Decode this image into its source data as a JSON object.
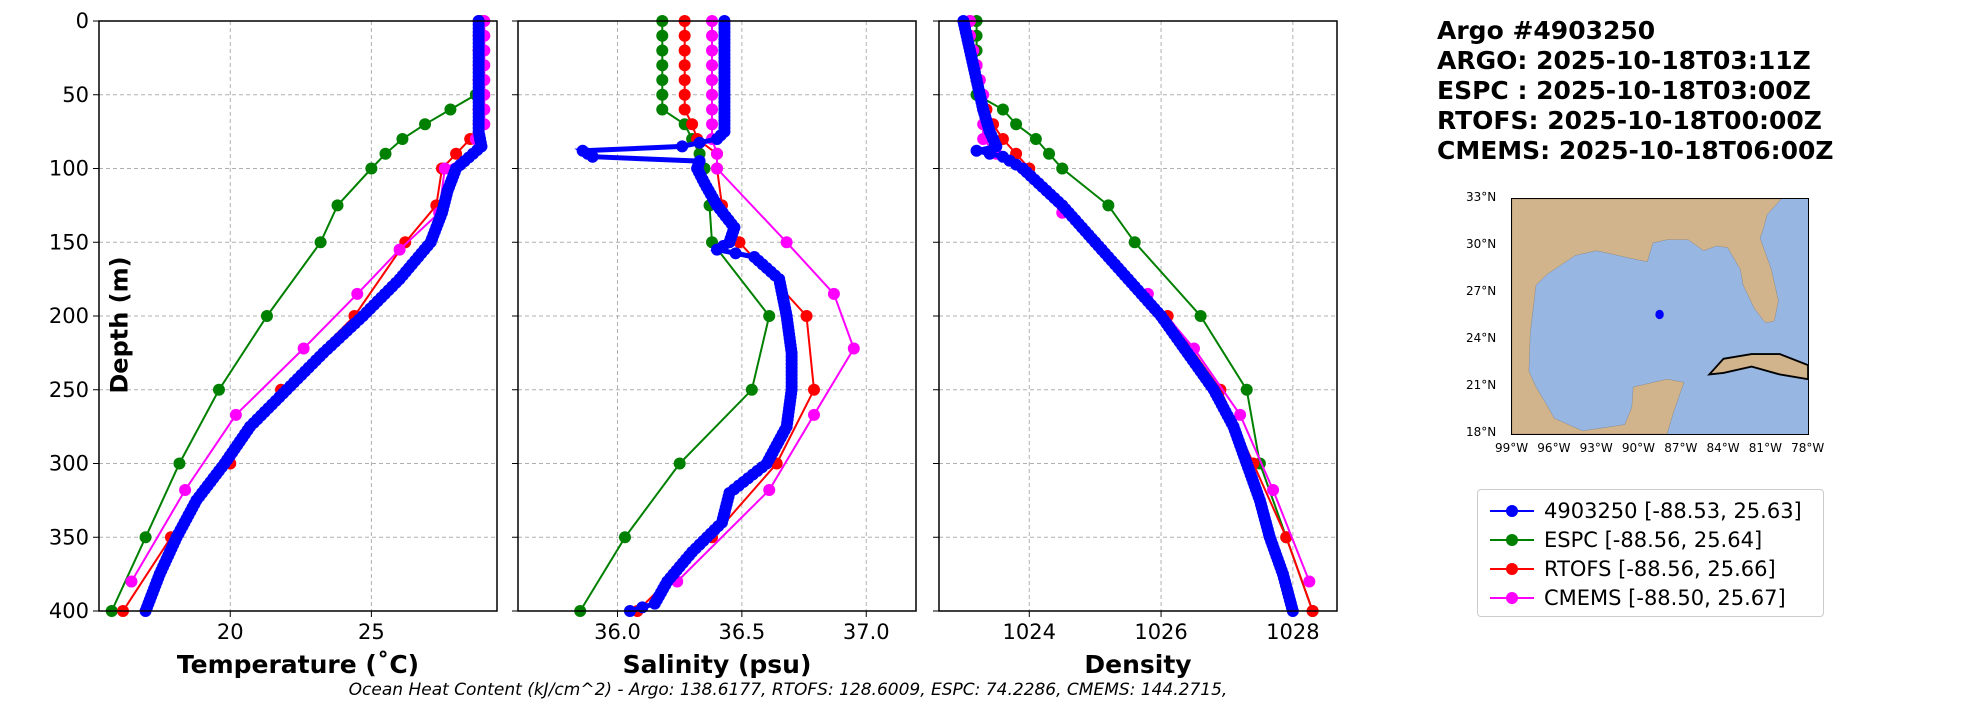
{
  "info": {
    "title": "Argo #4903250",
    "argo_time": "ARGO: 2025-10-18T03:11Z",
    "espc_time": "ESPC : 2025-10-18T03:00Z",
    "rtofs_time": "RTOFS: 2025-10-18T00:00Z",
    "cmems_time": "CMEMS: 2025-10-18T06:00Z"
  },
  "ohc_text": "Ocean Heat Content (kJ/cm^2) - Argo: 138.6177,  RTOFS: 128.6009,  ESPC: 74.2286,  CMEMS: 144.2715,",
  "colors": {
    "argo": "#0000ff",
    "espc": "#008000",
    "rtofs": "#ff0000",
    "cmems": "#ff00ff"
  },
  "legend": [
    {
      "key": "argo",
      "label": "4903250 [-88.53, 25.63]"
    },
    {
      "key": "espc",
      "label": "ESPC [-88.56, 25.64]"
    },
    {
      "key": "rtofs",
      "label": "RTOFS [-88.56, 25.66]"
    },
    {
      "key": "cmems",
      "label": "CMEMS [-88.50, 25.67]"
    }
  ],
  "map": {
    "lat_ticks": [
      "33°N",
      "30°N",
      "27°N",
      "24°N",
      "21°N",
      "18°N"
    ],
    "lon_ticks": [
      "99°W",
      "96°W",
      "93°W",
      "90°W",
      "87°W",
      "84°W",
      "81°W",
      "78°W"
    ],
    "float_lon": -88.53,
    "float_lat": 25.63
  },
  "ylabel": "Depth (m)",
  "yticks": [
    "0",
    "50",
    "100",
    "150",
    "200",
    "250",
    "300",
    "350",
    "400"
  ],
  "chart_data": [
    {
      "type": "line",
      "xlabel": "Temperature (˚C)",
      "ylabel": "Depth (m)",
      "xlim": [
        15.35,
        29.45
      ],
      "ylim": [
        400,
        0
      ],
      "xticks": [
        20,
        25
      ],
      "xtick_labels": [
        "20",
        "25"
      ],
      "grid": true,
      "series": [
        {
          "name": "argo",
          "depth": [
            0,
            20,
            40,
            60,
            75,
            85,
            90,
            100,
            115,
            130,
            150,
            175,
            200,
            225,
            250,
            275,
            300,
            325,
            350,
            375,
            400
          ],
          "values": [
            28.8,
            28.8,
            28.8,
            28.8,
            28.8,
            28.9,
            28.6,
            28.0,
            27.7,
            27.5,
            27.1,
            26.0,
            24.7,
            23.3,
            22.0,
            20.7,
            19.8,
            18.8,
            18.1,
            17.5,
            17.0
          ]
        },
        {
          "name": "espc",
          "depth": [
            0,
            10,
            20,
            30,
            40,
            50,
            60,
            70,
            80,
            90,
            100,
            125,
            150,
            200,
            250,
            300,
            350,
            400
          ],
          "values": [
            28.9,
            28.9,
            28.9,
            28.9,
            28.9,
            28.7,
            27.8,
            26.9,
            26.1,
            25.5,
            25.0,
            23.8,
            23.2,
            21.3,
            19.6,
            18.2,
            17.0,
            15.8
          ]
        },
        {
          "name": "rtofs",
          "depth": [
            0,
            10,
            20,
            30,
            40,
            50,
            60,
            70,
            80,
            90,
            100,
            125,
            150,
            200,
            250,
            300,
            350,
            400
          ],
          "values": [
            28.8,
            28.8,
            28.8,
            28.8,
            28.8,
            28.8,
            28.8,
            28.8,
            28.5,
            28.0,
            27.5,
            27.3,
            26.2,
            24.4,
            21.8,
            20.0,
            17.9,
            16.2
          ]
        },
        {
          "name": "cmems",
          "depth": [
            0,
            10,
            20,
            30,
            40,
            50,
            60,
            70,
            80,
            90,
            100,
            130,
            155,
            185,
            222,
            267,
            318,
            380
          ],
          "values": [
            29.0,
            29.0,
            29.0,
            29.0,
            29.0,
            29.0,
            29.0,
            29.0,
            28.7,
            28.6,
            27.6,
            27.4,
            26.0,
            24.5,
            22.6,
            20.2,
            18.4,
            16.5
          ]
        }
      ]
    },
    {
      "type": "line",
      "xlabel": "Salinity (psu)",
      "ylabel": "",
      "xlim": [
        35.6,
        37.2
      ],
      "ylim": [
        400,
        0
      ],
      "xticks": [
        36.0,
        36.5,
        37.0
      ],
      "xtick_labels": [
        "36.0",
        "36.5",
        "37.0"
      ],
      "grid": true,
      "series": [
        {
          "name": "argo",
          "depth": [
            0,
            20,
            40,
            60,
            75,
            80,
            85,
            88,
            92,
            95,
            100,
            110,
            125,
            140,
            150,
            155,
            160,
            175,
            200,
            225,
            250,
            275,
            300,
            320,
            340,
            360,
            380,
            395,
            400
          ],
          "values": [
            36.43,
            36.43,
            36.43,
            36.43,
            36.43,
            36.4,
            36.26,
            35.86,
            35.9,
            36.33,
            36.32,
            36.35,
            36.4,
            36.47,
            36.45,
            36.4,
            36.55,
            36.65,
            36.68,
            36.7,
            36.7,
            36.68,
            36.6,
            36.45,
            36.42,
            36.3,
            36.2,
            36.15,
            36.05
          ]
        },
        {
          "name": "espc",
          "depth": [
            0,
            10,
            20,
            30,
            40,
            50,
            60,
            70,
            80,
            90,
            100,
            125,
            150,
            200,
            250,
            300,
            350,
            400
          ],
          "values": [
            36.18,
            36.18,
            36.18,
            36.18,
            36.18,
            36.18,
            36.18,
            36.27,
            36.3,
            36.33,
            36.35,
            36.37,
            36.38,
            36.61,
            36.54,
            36.25,
            36.03,
            35.85
          ]
        },
        {
          "name": "rtofs",
          "depth": [
            0,
            10,
            20,
            30,
            40,
            50,
            60,
            70,
            80,
            90,
            100,
            125,
            150,
            200,
            250,
            300,
            350,
            400
          ],
          "values": [
            36.27,
            36.27,
            36.27,
            36.27,
            36.27,
            36.27,
            36.27,
            36.3,
            36.32,
            36.4,
            36.4,
            36.42,
            36.49,
            36.76,
            36.79,
            36.64,
            36.38,
            36.08
          ]
        },
        {
          "name": "cmems",
          "depth": [
            0,
            10,
            20,
            30,
            40,
            50,
            60,
            70,
            80,
            90,
            100,
            150,
            185,
            222,
            267,
            318,
            380
          ],
          "values": [
            36.38,
            36.38,
            36.38,
            36.38,
            36.38,
            36.38,
            36.38,
            36.38,
            36.38,
            36.4,
            36.4,
            36.68,
            36.87,
            36.95,
            36.79,
            36.61,
            36.24
          ]
        }
      ]
    },
    {
      "type": "line",
      "xlabel": "Density",
      "ylabel": "",
      "xlim": [
        1022.63,
        1028.67
      ],
      "ylim": [
        400,
        0
      ],
      "xticks": [
        1024,
        1026,
        1028
      ],
      "xtick_labels": [
        "1024",
        "1026",
        "1028"
      ],
      "grid": true,
      "series": [
        {
          "name": "argo",
          "depth": [
            0,
            20,
            40,
            60,
            75,
            85,
            88,
            92,
            100,
            125,
            150,
            175,
            200,
            225,
            250,
            275,
            300,
            325,
            350,
            375,
            400
          ],
          "values": [
            1023.0,
            1023.1,
            1023.2,
            1023.3,
            1023.4,
            1023.5,
            1023.2,
            1023.6,
            1023.9,
            1024.5,
            1025.0,
            1025.5,
            1026.0,
            1026.4,
            1026.8,
            1027.1,
            1027.3,
            1027.5,
            1027.65,
            1027.85,
            1028.0
          ]
        },
        {
          "name": "espc",
          "depth": [
            0,
            10,
            20,
            30,
            40,
            50,
            60,
            70,
            80,
            90,
            100,
            125,
            150,
            200,
            250,
            300,
            350,
            400
          ],
          "values": [
            1023.2,
            1023.2,
            1023.2,
            1023.2,
            1023.2,
            1023.2,
            1023.6,
            1023.8,
            1024.1,
            1024.3,
            1024.5,
            1025.2,
            1025.6,
            1026.6,
            1027.3,
            1027.5,
            1027.9,
            1028.3
          ]
        },
        {
          "name": "rtofs",
          "depth": [
            0,
            10,
            20,
            30,
            40,
            50,
            60,
            70,
            80,
            90,
            100,
            125,
            150,
            200,
            250,
            300,
            350,
            400
          ],
          "values": [
            1023.1,
            1023.1,
            1023.15,
            1023.2,
            1023.2,
            1023.25,
            1023.35,
            1023.45,
            1023.6,
            1023.8,
            1024.0,
            1024.5,
            1025.0,
            1026.1,
            1026.9,
            1027.4,
            1027.9,
            1028.3
          ]
        },
        {
          "name": "cmems",
          "depth": [
            0,
            10,
            20,
            30,
            40,
            50,
            60,
            70,
            80,
            90,
            100,
            130,
            155,
            185,
            222,
            267,
            318,
            380
          ],
          "values": [
            1023.1,
            1023.1,
            1023.15,
            1023.2,
            1023.25,
            1023.3,
            1023.3,
            1023.3,
            1023.3,
            1023.5,
            1023.9,
            1024.5,
            1025.1,
            1025.8,
            1026.5,
            1027.2,
            1027.7,
            1028.25
          ]
        }
      ]
    }
  ]
}
